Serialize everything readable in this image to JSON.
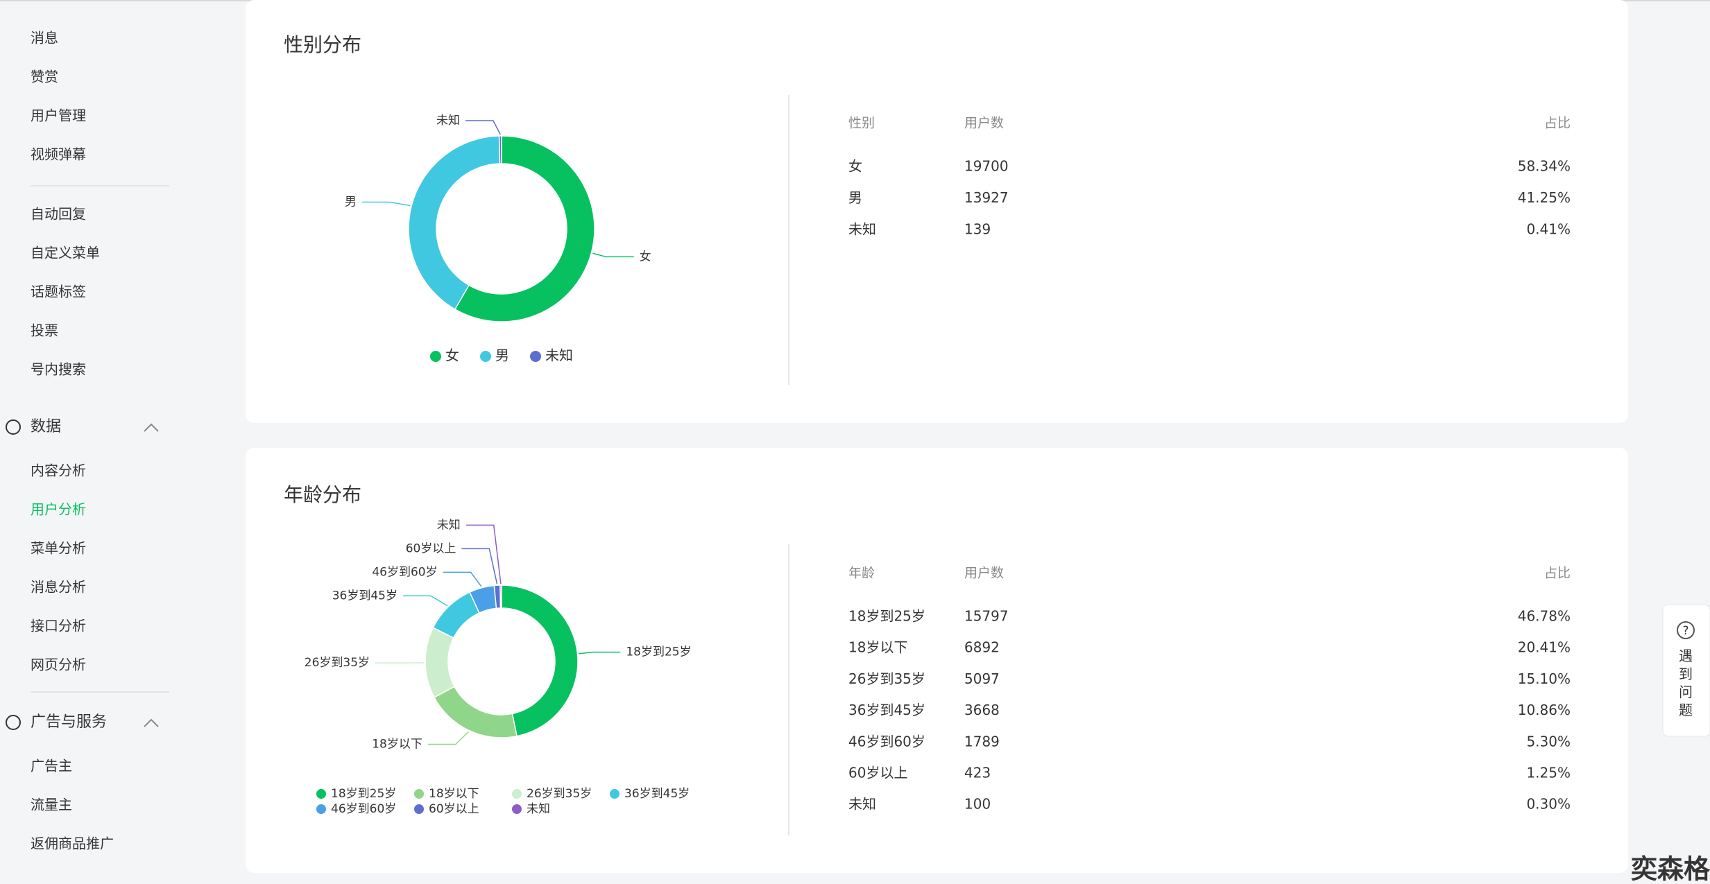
{
  "sidebar": {
    "groups": [
      {
        "items": [
          "消息",
          "赞赏",
          "用户管理",
          "视频弹幕"
        ]
      },
      {
        "items": [
          "自动回复",
          "自定义菜单",
          "话题标签",
          "投票",
          "号内搜索"
        ]
      },
      {
        "heading": "数据",
        "items": [
          "内容分析",
          "用户分析",
          "菜单分析",
          "消息分析",
          "接口分析",
          "网页分析"
        ],
        "active": 1
      },
      {
        "heading": "广告与服务",
        "items": [
          "广告主",
          "流量主",
          "返佣商品推广"
        ]
      }
    ]
  },
  "cards": [
    {
      "title": "性别分布",
      "colors": [
        "#07c160",
        "#40c8e0",
        "#5b6fcf"
      ],
      "table": {
        "headers": [
          "性别",
          "用户数",
          "占比"
        ],
        "rows": [
          {
            "label": "女",
            "users": 19700,
            "share": "58.34%"
          },
          {
            "label": "男",
            "users": 13927,
            "share": "41.25%"
          },
          {
            "label": "未知",
            "users": 139,
            "share": "0.41%"
          }
        ]
      }
    },
    {
      "title": "年龄分布",
      "colors": [
        "#07c160",
        "#8fd58a",
        "#cdeecd",
        "#40c8e0",
        "#4a9fe8",
        "#5b6fcf",
        "#8d5cc9"
      ],
      "table": {
        "headers": [
          "年龄",
          "用户数",
          "占比"
        ],
        "rows": [
          {
            "label": "18岁到25岁",
            "users": 15797,
            "share": "46.78%"
          },
          {
            "label": "18岁以下",
            "users": 6892,
            "share": "20.41%"
          },
          {
            "label": "26岁到35岁",
            "users": 5097,
            "share": "15.10%"
          },
          {
            "label": "36岁到45岁",
            "users": 3668,
            "share": "10.86%"
          },
          {
            "label": "46岁到60岁",
            "users": 1789,
            "share": "5.30%"
          },
          {
            "label": "60岁以上",
            "users": 423,
            "share": "1.25%"
          },
          {
            "label": "未知",
            "users": 100,
            "share": "0.30%"
          }
        ]
      }
    }
  ],
  "help": {
    "text": "遇到问题"
  },
  "watermark": "奕森格"
}
